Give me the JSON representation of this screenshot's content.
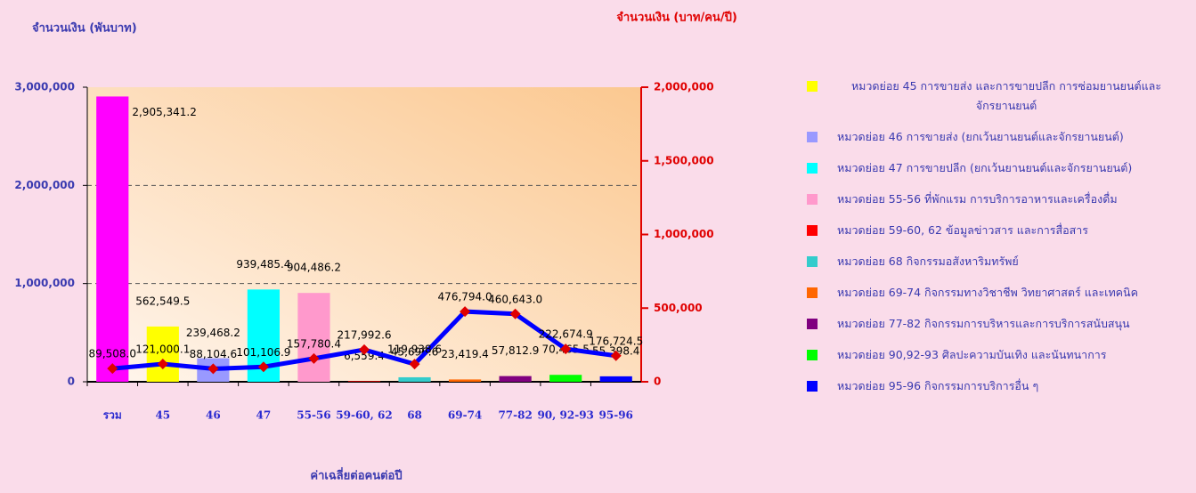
{
  "chart_data": {
    "type": "bar_line",
    "left_axis_title": "จำนวนเงิน (พันบาท)",
    "right_axis_title": "จำนวนเงิน (บาท/คน/ปี)",
    "x_label": "ค่าเฉลี่ยต่อคนต่อปี",
    "categories": [
      "รวม",
      "45",
      "46",
      "47",
      "55-56",
      "59-60, 62",
      "68",
      "69-74",
      "77-82",
      "90, 92-93",
      "95-96"
    ],
    "series": [
      {
        "type": "bar",
        "axis": "y",
        "colors": [
          "#ff00ff",
          "#ffff00",
          "#9999ff",
          "#00ffff",
          "#ff99cc",
          "#ff0000",
          "#33cccc",
          "#ff6600",
          "#800080",
          "#00ff00",
          "#0000ff"
        ],
        "values": [
          2905341.2,
          562549.5,
          239468.2,
          939485.4,
          904486.2,
          6559.4,
          45696.6,
          23419.4,
          57812.9,
          70465.5,
          55398.4
        ],
        "value_labels": [
          "2,905,341.2",
          "562,549.5",
          "239,468.2",
          "939,485.4",
          "904,486.2",
          "6,559.4",
          "45,696.6",
          "23,419.4",
          "57,812.9",
          "70,465.5",
          "55,398.4"
        ]
      },
      {
        "type": "line",
        "axis": "y2",
        "color": "#0000ff",
        "marker_color": "#e00000",
        "values": [
          89508.0,
          121000.1,
          88104.6,
          101106.9,
          157780.4,
          217992.6,
          119938.6,
          476794.0,
          460643.0,
          222674.9,
          176724.5
        ],
        "value_labels": [
          "89,508.0",
          "121,000.1",
          "88,104.6",
          "101,106.9",
          "157,780.4",
          "217,992.6",
          "119,938.6",
          "476,794.0",
          "460,643.0",
          "222,674.9",
          "176,724.5"
        ]
      }
    ],
    "ylim": [
      0,
      3000000
    ],
    "yticks": [
      0,
      {
        "value": 1000000,
        "label": "1,000,000"
      },
      {
        "value": 2000000,
        "label": "2,000,000"
      },
      {
        "value": 3000000,
        "label": "3,000,000"
      }
    ],
    "y2lim": [
      0,
      2000000
    ],
    "y2ticks": [
      0,
      {
        "value": 500000,
        "label": "500,000"
      },
      {
        "value": 1000000,
        "label": "1,000,000"
      },
      {
        "value": 1500000,
        "label": "1,500,000"
      },
      {
        "value": 2000000,
        "label": "2,000,000"
      }
    ],
    "grid": true,
    "legend": [
      {
        "name": "หมวดย่อย 45 การขายส่ง และการขายปลีก การซ่อมยานยนต์และจักรยานยนต์",
        "color": "#ffff00"
      },
      {
        "name": "หมวดย่อย 46 การขายส่ง (ยกเว้นยานยนต์และจักรยานยนต์)",
        "color": "#9999ff"
      },
      {
        "name": "หมวดย่อย 47 การขายปลีก (ยกเว้นยานยนต์และจักรยานยนต์)",
        "color": "#00ffff"
      },
      {
        "name": "หมวดย่อย 55-56 ที่พักแรม การบริการอาหารและเครื่องดื่ม",
        "color": "#ff99cc"
      },
      {
        "name": "หมวดย่อย 59-60, 62 ข้อมูลข่าวสาร และการสื่อสาร",
        "color": "#ff0000"
      },
      {
        "name": "หมวดย่อย 68 กิจกรรมอสังหาริมทรัพย์",
        "color": "#33cccc"
      },
      {
        "name": "หมวดย่อย 69-74 กิจกรรมทางวิชาชีพ วิทยาศาสตร์ และเทคนิค",
        "color": "#ff6600"
      },
      {
        "name": "หมวดย่อย 77-82 กิจกรรมการบริหารและการบริการสนับสนุน",
        "color": "#800080"
      },
      {
        "name": "หมวดย่อย 90,92-93 ศิลปะความบันเทิง และนันทนาการ",
        "color": "#00ff00"
      },
      {
        "name": "หมวดย่อย 95-96 กิจกรรมการบริการอื่น ๆ",
        "color": "#0000ff"
      }
    ]
  }
}
